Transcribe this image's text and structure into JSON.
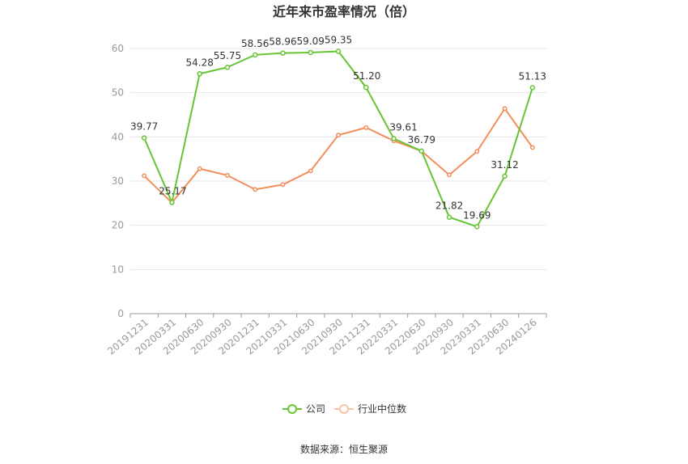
{
  "chart_data": {
    "type": "line",
    "title": "近年来市盈率情况（倍）",
    "categories": [
      "20191231",
      "20200331",
      "20200630",
      "20200930",
      "20201231",
      "20210331",
      "20210630",
      "20210930",
      "20211231",
      "20220331",
      "20220630",
      "20220930",
      "20230331",
      "20230630",
      "20240126"
    ],
    "ylim": [
      0,
      60
    ],
    "yticks": [
      0,
      10,
      20,
      30,
      40,
      50,
      60
    ],
    "grid": true,
    "legend_position": "bottom",
    "series": [
      {
        "name": "公司",
        "color": "#66c532",
        "values": [
          39.77,
          25.17,
          54.28,
          55.75,
          58.56,
          58.96,
          59.09,
          59.35,
          51.2,
          39.61,
          36.79,
          21.82,
          19.69,
          31.12,
          51.13
        ],
        "labels": [
          "39.77",
          "25.17",
          "54.28",
          "55.75",
          "58.56",
          "58.96",
          "59.09",
          "59.35",
          "51.20",
          "39.61",
          "36.79",
          "21.82",
          "19.69",
          "31.12",
          "51.13"
        ]
      },
      {
        "name": "行业中位数",
        "color": "#f28e5c",
        "values": [
          31.2,
          25.1,
          32.8,
          31.3,
          28.1,
          29.2,
          32.3,
          40.4,
          42.1,
          39.1,
          36.8,
          31.4,
          36.7,
          46.4,
          37.6
        ]
      }
    ],
    "source": "数据来源：恒生聚源"
  }
}
